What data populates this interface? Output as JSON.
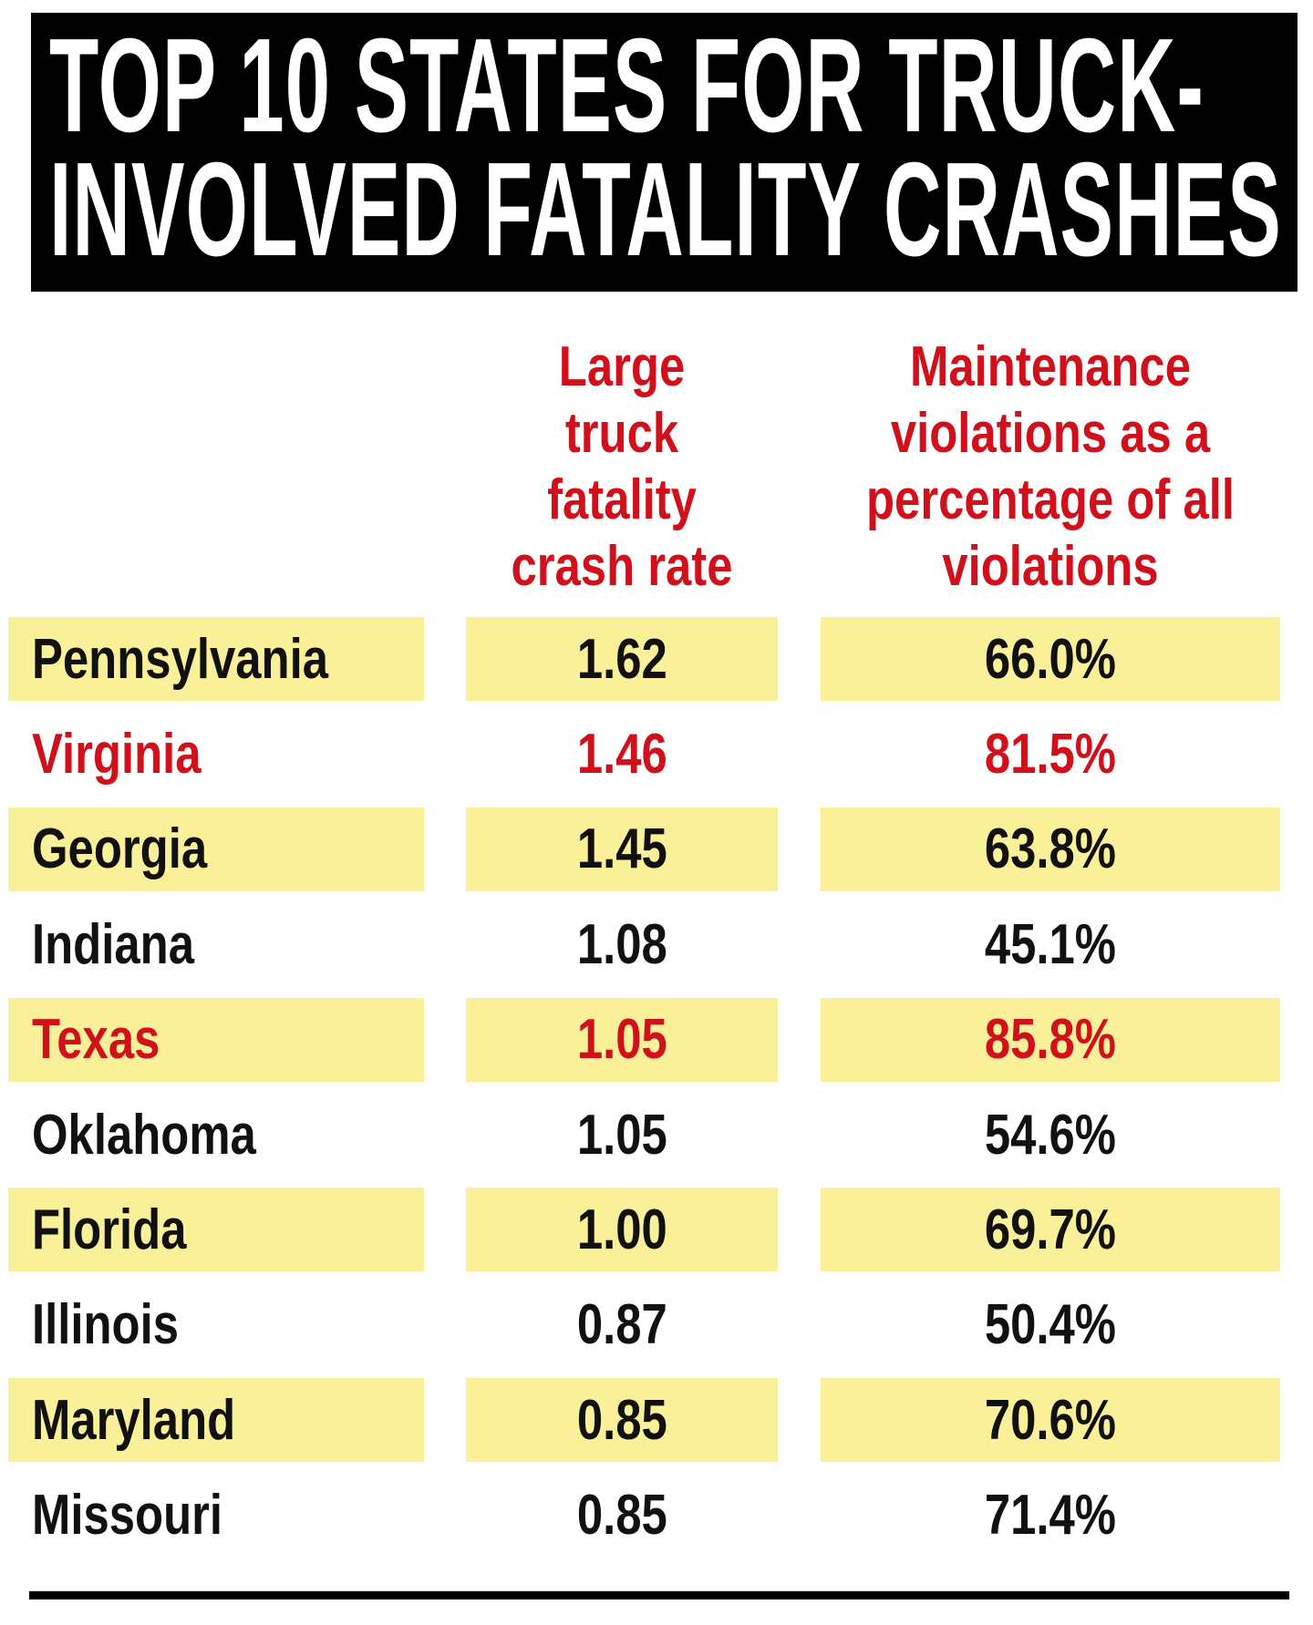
{
  "chart_data": {
    "type": "table",
    "title": [
      "TOP 10 STATES FOR TRUCK-",
      "INVOLVED FATALITY CRASHES"
    ],
    "columns": [
      "",
      [
        "Large",
        "truck",
        "fatality",
        "crash rate"
      ],
      [
        "Maintenance",
        "violations as a",
        "percentage of all",
        "violations"
      ]
    ],
    "rows": [
      {
        "state": "Pennsylvania",
        "rate": "1.62",
        "pct": "66.0%",
        "highlight": true,
        "red": false
      },
      {
        "state": "Virginia",
        "rate": "1.46",
        "pct": "81.5%",
        "highlight": false,
        "red": true
      },
      {
        "state": "Georgia",
        "rate": "1.45",
        "pct": "63.8%",
        "highlight": true,
        "red": false
      },
      {
        "state": "Indiana",
        "rate": "1.08",
        "pct": "45.1%",
        "highlight": false,
        "red": false
      },
      {
        "state": "Texas",
        "rate": "1.05",
        "pct": "85.8%",
        "highlight": true,
        "red": true
      },
      {
        "state": "Oklahoma",
        "rate": "1.05",
        "pct": "54.6%",
        "highlight": false,
        "red": false
      },
      {
        "state": "Florida",
        "rate": "1.00",
        "pct": "69.7%",
        "highlight": true,
        "red": false
      },
      {
        "state": "Illinois",
        "rate": "0.87",
        "pct": "50.4%",
        "highlight": false,
        "red": false
      },
      {
        "state": "Maryland",
        "rate": "0.85",
        "pct": "70.6%",
        "highlight": true,
        "red": false
      },
      {
        "state": "Missouri",
        "rate": "0.85",
        "pct": "71.4%",
        "highlight": false,
        "red": false
      }
    ],
    "colors": {
      "title_bg": "#000000",
      "header_text": "#d0111b",
      "highlight_bg": "#fbf09a",
      "text": "#111111",
      "red_text": "#d0111b"
    }
  }
}
